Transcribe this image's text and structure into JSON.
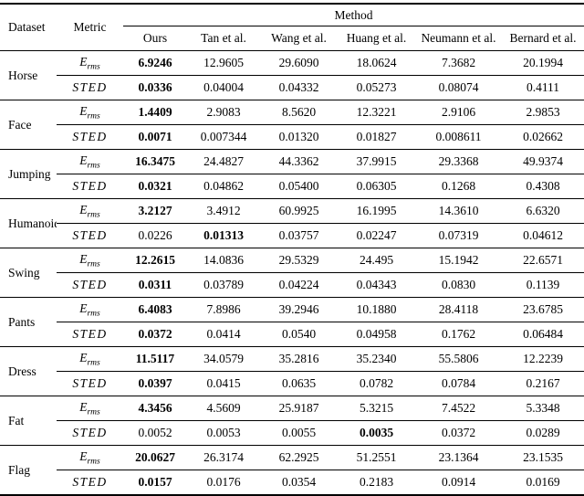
{
  "table": {
    "col_dataset": "Dataset",
    "col_metric": "Metric",
    "method_group_label": "Method",
    "methods": [
      "Ours",
      "Tan et al.",
      "Wang et al.",
      "Huang et al.",
      "Neumann et al.",
      "Bernard et al."
    ],
    "metrics": {
      "erms_base": "E",
      "erms_sub": "rms",
      "sted": "STED"
    },
    "groups": [
      {
        "dataset": "Horse",
        "erms": {
          "values": [
            "6.9246",
            "12.9605",
            "29.6090",
            "18.0624",
            "7.3682",
            "20.1994"
          ],
          "bold_index": 0
        },
        "sted": {
          "values": [
            "0.0336",
            "0.04004",
            "0.04332",
            "0.05273",
            "0.08074",
            "0.4111"
          ],
          "bold_index": 0
        }
      },
      {
        "dataset": "Face",
        "erms": {
          "values": [
            "1.4409",
            "2.9083",
            "8.5620",
            "12.3221",
            "2.9106",
            "2.9853"
          ],
          "bold_index": 0
        },
        "sted": {
          "values": [
            "0.0071",
            "0.007344",
            "0.01320",
            "0.01827",
            "0.008611",
            "0.02662"
          ],
          "bold_index": 0
        }
      },
      {
        "dataset": "Jumping",
        "erms": {
          "values": [
            "16.3475",
            "24.4827",
            "44.3362",
            "37.9915",
            "29.3368",
            "49.9374"
          ],
          "bold_index": 0
        },
        "sted": {
          "values": [
            "0.0321",
            "0.04862",
            "0.05400",
            "0.06305",
            "0.1268",
            "0.4308"
          ],
          "bold_index": 0
        }
      },
      {
        "dataset": "Humanoid",
        "erms": {
          "values": [
            "3.2127",
            "3.4912",
            "60.9925",
            "16.1995",
            "14.3610",
            "6.6320"
          ],
          "bold_index": 0
        },
        "sted": {
          "values": [
            "0.0226",
            "0.01313",
            "0.03757",
            "0.02247",
            "0.07319",
            "0.04612"
          ],
          "bold_index": 1
        }
      },
      {
        "dataset": "Swing",
        "erms": {
          "values": [
            "12.2615",
            "14.0836",
            "29.5329",
            "24.495",
            "15.1942",
            "22.6571"
          ],
          "bold_index": 0
        },
        "sted": {
          "values": [
            "0.0311",
            "0.03789",
            "0.04224",
            "0.04343",
            "0.0830",
            "0.1139"
          ],
          "bold_index": 0
        }
      },
      {
        "dataset": "Pants",
        "erms": {
          "values": [
            "6.4083",
            "7.8986",
            "39.2946",
            "10.1880",
            "28.4118",
            "23.6785"
          ],
          "bold_index": 0
        },
        "sted": {
          "values": [
            "0.0372",
            "0.0414",
            "0.0540",
            "0.04958",
            "0.1762",
            "0.06484"
          ],
          "bold_index": 0
        }
      },
      {
        "dataset": "Dress",
        "erms": {
          "values": [
            "11.5117",
            "34.0579",
            "35.2816",
            "35.2340",
            "55.5806",
            "12.2239"
          ],
          "bold_index": 0
        },
        "sted": {
          "values": [
            "0.0397",
            "0.0415",
            "0.0635",
            "0.0782",
            "0.0784",
            "0.2167"
          ],
          "bold_index": 0
        }
      },
      {
        "dataset": "Fat",
        "erms": {
          "values": [
            "4.3456",
            "4.5609",
            "25.9187",
            "5.3215",
            "7.4522",
            "5.3348"
          ],
          "bold_index": 0
        },
        "sted": {
          "values": [
            "0.0052",
            "0.0053",
            "0.0055",
            "0.0035",
            "0.0372",
            "0.0289"
          ],
          "bold_index": 3
        }
      },
      {
        "dataset": "Flag",
        "erms": {
          "values": [
            "20.0627",
            "26.3174",
            "62.2925",
            "51.2551",
            "23.1364",
            "23.1535"
          ],
          "bold_index": 0
        },
        "sted": {
          "values": [
            "0.0157",
            "0.0176",
            "0.0354",
            "0.2183",
            "0.0914",
            "0.0169"
          ],
          "bold_index": 0
        }
      }
    ]
  }
}
